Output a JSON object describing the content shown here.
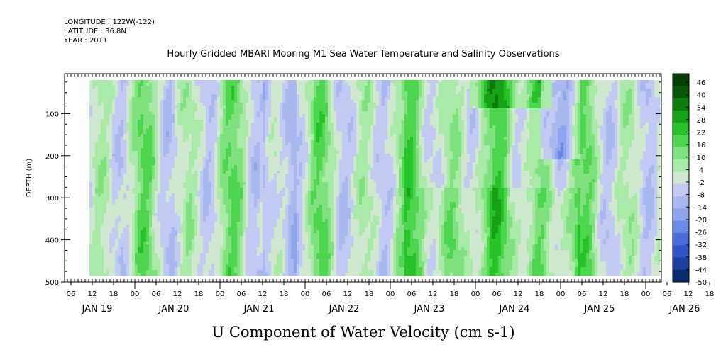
{
  "header": {
    "longitude": "LONGITUDE : 122W(-122)",
    "latitude": "LATITUDE : 36.8N",
    "year": "YEAR : 2011",
    "dataset_title": "Hourly Gridded MBARI Mooring M1 Sea Water Temperature and Salinity Observations"
  },
  "chart_data": {
    "type": "heatmap",
    "title": "U Component of Water Velocity (cm s-1)",
    "ylabel": "DEPTH (m)",
    "xlabel": "",
    "y_ticks": [
      "100",
      "200",
      "300",
      "400",
      "500"
    ],
    "ylim": [
      500,
      15
    ],
    "x_hour_ticks": [
      "06",
      "12",
      "18",
      "00",
      "06",
      "12",
      "18",
      "00",
      "06",
      "12",
      "18",
      "00",
      "06",
      "12",
      "18",
      "00",
      "06",
      "12",
      "18",
      "00",
      "06",
      "12",
      "18",
      "00",
      "06",
      "12",
      "18",
      "00",
      "06",
      "12",
      "18",
      "00"
    ],
    "x_day_labels": [
      "JAN 19",
      "JAN 20",
      "JAN 21",
      "JAN 22",
      "JAN 23",
      "JAN 24",
      "JAN 25",
      "JAN 26"
    ],
    "colorbar_labels": [
      "46",
      "40",
      "34",
      "28",
      "22",
      "16",
      "10",
      "4",
      "-2",
      "-8",
      "-14",
      "-20",
      "-26",
      "-32",
      "-38",
      "-44",
      "-50"
    ],
    "palette": [
      "#0a2a6e",
      "#1f3fa0",
      "#2f55c8",
      "#4a6fdc",
      "#6b8ae6",
      "#8ea4ec",
      "#aab8f0",
      "#c2c9f3",
      "#cfe8cf",
      "#a9eaa9",
      "#7fe27f",
      "#4fd64f",
      "#27c227",
      "#17a117",
      "#0c7d0c",
      "#065806",
      "#043e04"
    ],
    "data_range": [
      -26,
      34
    ],
    "time_range": "JAN 19 10:00 to JAN 26 02:00 (hourly)",
    "depth_range_m": [
      15,
      485
    ],
    "structure": "alternating bands of positive (green) and negative (blue) velocity roughly every half day; strongest positive values (~20-34) near surface late Jan 23 to Jan 25 and at depth 300-400 m on Jan 22-25; negative values down to ~-26 in bands near Jan 21-22 and Jan 24 12:00-Jan 25 06:00"
  }
}
